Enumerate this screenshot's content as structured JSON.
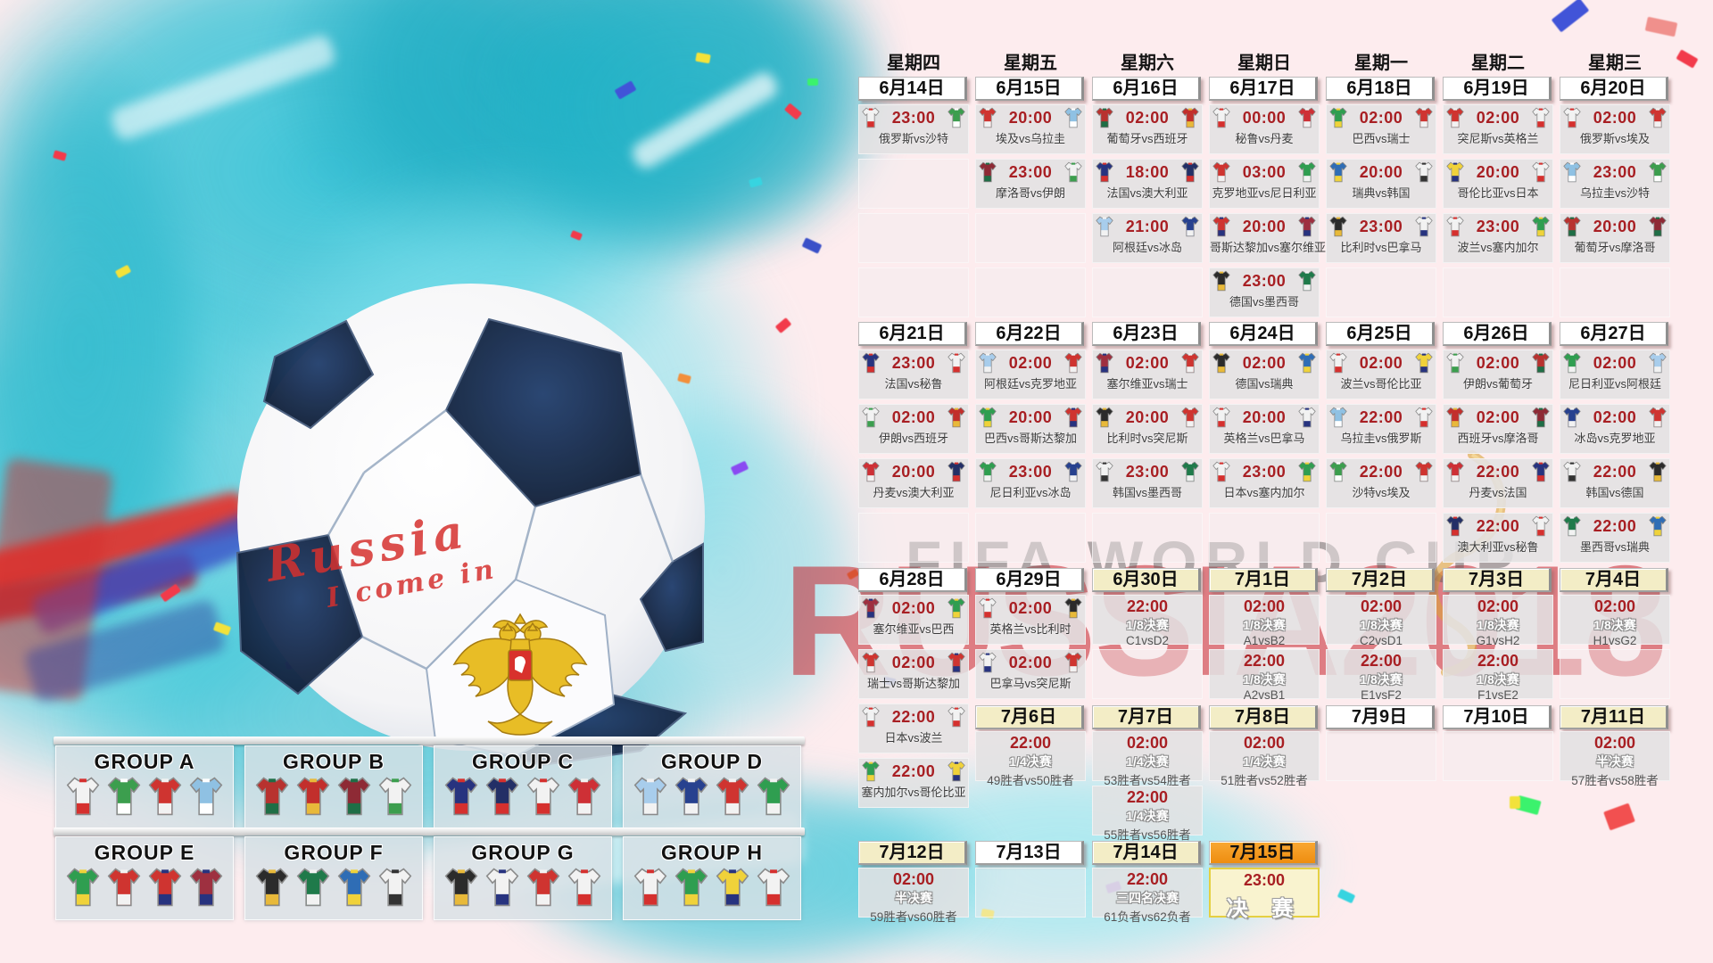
{
  "artwork": {
    "ball_text_line1": "Russia",
    "ball_text_line2": "I come in",
    "watermark_red_text": "RUSSIA2018",
    "watermark_gray_text": "FIFA WORLD CUP"
  },
  "colors": {
    "time_red": "#a81f23",
    "date_plain_bg": "#ffffff",
    "date_knockout_bg": "#f3edc6",
    "date_final_bg": "#f59a23",
    "final_cell_bg": "#f9f3cf",
    "final_cell_border": "#e5d042",
    "cell_bg": "#e3e1e2",
    "splash_cyan": "#35c3d7",
    "watermark_red": "#c4232b"
  },
  "weekdays": [
    "星期四",
    "星期五",
    "星期六",
    "星期日",
    "星期一",
    "星期二",
    "星期三"
  ],
  "teams": {
    "俄罗斯": [
      "#f2f2f2",
      "#d5302e"
    ],
    "沙特": [
      "#3c9e4e",
      "#ffffff"
    ],
    "埃及": [
      "#cf3430",
      "#f2f2f2"
    ],
    "乌拉圭": [
      "#8fc1e3",
      "#ffffff"
    ],
    "葡萄牙": [
      "#b8322f",
      "#1f6e46"
    ],
    "西班牙": [
      "#c22f2c",
      "#e8b93a"
    ],
    "摩洛哥": [
      "#8e2a35",
      "#1f6e46"
    ],
    "伊朗": [
      "#f2f2f2",
      "#3c9e4e"
    ],
    "法国": [
      "#27337f",
      "#d5302e"
    ],
    "澳大利亚": [
      "#232f66",
      "#d5302e"
    ],
    "秘鲁": [
      "#f2f2f2",
      "#d5302e"
    ],
    "丹麦": [
      "#ce3036",
      "#f2f2f2"
    ],
    "阿根廷": [
      "#a8cdec",
      "#f2f2f2"
    ],
    "冰岛": [
      "#27418f",
      "#f2f2f2"
    ],
    "克罗地亚": [
      "#cf3430",
      "#f2f2f2"
    ],
    "尼日利亚": [
      "#2f9e50",
      "#f2f2f2"
    ],
    "巴西": [
      "#2f9e50",
      "#f0d23a"
    ],
    "瑞士": [
      "#cf3430",
      "#f2f2f2"
    ],
    "哥斯达黎加": [
      "#cf3430",
      "#27337f"
    ],
    "塞尔维亚": [
      "#9e3040",
      "#27337f"
    ],
    "德国": [
      "#2b2b2b",
      "#e8b93a"
    ],
    "墨西哥": [
      "#1f7a4a",
      "#f2f2f2"
    ],
    "瑞典": [
      "#2f6db5",
      "#f0d23a"
    ],
    "韩国": [
      "#f2f2f2",
      "#333333"
    ],
    "比利时": [
      "#2b2b2b",
      "#e8b93a"
    ],
    "巴拿马": [
      "#f2f2f2",
      "#27337f"
    ],
    "突尼斯": [
      "#cf3430",
      "#f2f2f2"
    ],
    "英格兰": [
      "#f2f2f2",
      "#d5302e"
    ],
    "波兰": [
      "#f2f2f2",
      "#d5302e"
    ],
    "塞内加尔": [
      "#2f9e50",
      "#f0d23a"
    ],
    "哥伦比亚": [
      "#f0d23a",
      "#27337f"
    ],
    "日本": [
      "#f2f2f2",
      "#d5302e"
    ]
  },
  "sections": [
    {
      "dates": [
        {
          "label": "6月14日",
          "style": "plain"
        },
        {
          "label": "6月15日",
          "style": "plain"
        },
        {
          "label": "6月16日",
          "style": "plain"
        },
        {
          "label": "6月17日",
          "style": "plain"
        },
        {
          "label": "6月18日",
          "style": "plain"
        },
        {
          "label": "6月19日",
          "style": "plain"
        },
        {
          "label": "6月20日",
          "style": "plain"
        }
      ],
      "columns": [
        [
          {
            "type": "match",
            "time": "23:00",
            "home": "俄罗斯",
            "away": "沙特",
            "label": "俄罗斯vs沙特"
          },
          {
            "type": "empty"
          },
          {
            "type": "empty"
          },
          {
            "type": "empty"
          }
        ],
        [
          {
            "type": "match",
            "time": "20:00",
            "home": "埃及",
            "away": "乌拉圭",
            "label": "埃及vs乌拉圭"
          },
          {
            "type": "match",
            "time": "23:00",
            "home": "摩洛哥",
            "away": "伊朗",
            "label": "摩洛哥vs伊朗"
          },
          {
            "type": "empty"
          },
          {
            "type": "empty"
          }
        ],
        [
          {
            "type": "match",
            "time": "02:00",
            "home": "葡萄牙",
            "away": "西班牙",
            "label": "葡萄牙vs西班牙"
          },
          {
            "type": "match",
            "time": "18:00",
            "home": "法国",
            "away": "澳大利亚",
            "label": "法国vs澳大利亚"
          },
          {
            "type": "match",
            "time": "21:00",
            "home": "阿根廷",
            "away": "冰岛",
            "label": "阿根廷vs冰岛"
          },
          {
            "type": "empty"
          }
        ],
        [
          {
            "type": "match",
            "time": "00:00",
            "home": "秘鲁",
            "away": "丹麦",
            "label": "秘鲁vs丹麦"
          },
          {
            "type": "match",
            "time": "03:00",
            "home": "克罗地亚",
            "away": "尼日利亚",
            "label": "克罗地亚vs尼日利亚"
          },
          {
            "type": "match",
            "time": "20:00",
            "home": "哥斯达黎加",
            "away": "塞尔维亚",
            "label": "哥斯达黎加vs塞尔维亚"
          },
          {
            "type": "match",
            "time": "23:00",
            "home": "德国",
            "away": "墨西哥",
            "label": "德国vs墨西哥"
          }
        ],
        [
          {
            "type": "match",
            "time": "02:00",
            "home": "巴西",
            "away": "瑞士",
            "label": "巴西vs瑞士"
          },
          {
            "type": "match",
            "time": "20:00",
            "home": "瑞典",
            "away": "韩国",
            "label": "瑞典vs韩国"
          },
          {
            "type": "match",
            "time": "23:00",
            "home": "比利时",
            "away": "巴拿马",
            "label": "比利时vs巴拿马"
          },
          {
            "type": "empty"
          }
        ],
        [
          {
            "type": "match",
            "time": "02:00",
            "home": "突尼斯",
            "away": "英格兰",
            "label": "突尼斯vs英格兰"
          },
          {
            "type": "match",
            "time": "20:00",
            "home": "哥伦比亚",
            "away": "日本",
            "label": "哥伦比亚vs日本"
          },
          {
            "type": "match",
            "time": "23:00",
            "home": "波兰",
            "away": "塞内加尔",
            "label": "波兰vs塞内加尔"
          },
          {
            "type": "empty"
          }
        ],
        [
          {
            "type": "match",
            "time": "02:00",
            "home": "俄罗斯",
            "away": "埃及",
            "label": "俄罗斯vs埃及"
          },
          {
            "type": "match",
            "time": "23:00",
            "home": "乌拉圭",
            "away": "沙特",
            "label": "乌拉圭vs沙特"
          },
          {
            "type": "match",
            "time": "20:00",
            "home": "葡萄牙",
            "away": "摩洛哥",
            "label": "葡萄牙vs摩洛哥"
          },
          {
            "type": "empty"
          }
        ]
      ]
    },
    {
      "dates": [
        {
          "label": "6月21日",
          "style": "plain"
        },
        {
          "label": "6月22日",
          "style": "plain"
        },
        {
          "label": "6月23日",
          "style": "plain"
        },
        {
          "label": "6月24日",
          "style": "plain"
        },
        {
          "label": "6月25日",
          "style": "plain"
        },
        {
          "label": "6月26日",
          "style": "plain"
        },
        {
          "label": "6月27日",
          "style": "plain"
        }
      ],
      "columns": [
        [
          {
            "type": "match",
            "time": "23:00",
            "home": "法国",
            "away": "秘鲁",
            "label": "法国vs秘鲁"
          },
          {
            "type": "match",
            "time": "02:00",
            "home": "伊朗",
            "away": "西班牙",
            "label": "伊朗vs西班牙"
          },
          {
            "type": "match",
            "time": "20:00",
            "home": "丹麦",
            "away": "澳大利亚",
            "label": "丹麦vs澳大利亚"
          },
          {
            "type": "empty"
          }
        ],
        [
          {
            "type": "match",
            "time": "02:00",
            "home": "阿根廷",
            "away": "克罗地亚",
            "label": "阿根廷vs克罗地亚"
          },
          {
            "type": "match",
            "time": "20:00",
            "home": "巴西",
            "away": "哥斯达黎加",
            "label": "巴西vs哥斯达黎加"
          },
          {
            "type": "match",
            "time": "23:00",
            "home": "尼日利亚",
            "away": "冰岛",
            "label": "尼日利亚vs冰岛"
          },
          {
            "type": "empty"
          }
        ],
        [
          {
            "type": "match",
            "time": "02:00",
            "home": "塞尔维亚",
            "away": "瑞士",
            "label": "塞尔维亚vs瑞士"
          },
          {
            "type": "match",
            "time": "20:00",
            "home": "比利时",
            "away": "突尼斯",
            "label": "比利时vs突尼斯"
          },
          {
            "type": "match",
            "time": "23:00",
            "home": "韩国",
            "away": "墨西哥",
            "label": "韩国vs墨西哥"
          },
          {
            "type": "empty"
          }
        ],
        [
          {
            "type": "match",
            "time": "02:00",
            "home": "德国",
            "away": "瑞典",
            "label": "德国vs瑞典"
          },
          {
            "type": "match",
            "time": "20:00",
            "home": "英格兰",
            "away": "巴拿马",
            "label": "英格兰vs巴拿马"
          },
          {
            "type": "match",
            "time": "23:00",
            "home": "日本",
            "away": "塞内加尔",
            "label": "日本vs塞内加尔"
          },
          {
            "type": "empty"
          }
        ],
        [
          {
            "type": "match",
            "time": "02:00",
            "home": "波兰",
            "away": "哥伦比亚",
            "label": "波兰vs哥伦比亚"
          },
          {
            "type": "match",
            "time": "22:00",
            "home": "乌拉圭",
            "away": "俄罗斯",
            "label": "乌拉圭vs俄罗斯"
          },
          {
            "type": "match",
            "time": "22:00",
            "home": "沙特",
            "away": "埃及",
            "label": "沙特vs埃及"
          },
          {
            "type": "empty"
          }
        ],
        [
          {
            "type": "match",
            "time": "02:00",
            "home": "伊朗",
            "away": "葡萄牙",
            "label": "伊朗vs葡萄牙"
          },
          {
            "type": "match",
            "time": "02:00",
            "home": "西班牙",
            "away": "摩洛哥",
            "label": "西班牙vs摩洛哥"
          },
          {
            "type": "match",
            "time": "22:00",
            "home": "丹麦",
            "away": "法国",
            "label": "丹麦vs法国"
          },
          {
            "type": "match",
            "time": "22:00",
            "home": "澳大利亚",
            "away": "秘鲁",
            "label": "澳大利亚vs秘鲁"
          }
        ],
        [
          {
            "type": "match",
            "time": "02:00",
            "home": "尼日利亚",
            "away": "阿根廷",
            "label": "尼日利亚vs阿根廷"
          },
          {
            "type": "match",
            "time": "02:00",
            "home": "冰岛",
            "away": "克罗地亚",
            "label": "冰岛vs克罗地亚"
          },
          {
            "type": "match",
            "time": "22:00",
            "home": "韩国",
            "away": "德国",
            "label": "韩国vs德国"
          },
          {
            "type": "match",
            "time": "22:00",
            "home": "墨西哥",
            "away": "瑞典",
            "label": "墨西哥vs瑞典"
          }
        ]
      ]
    },
    {
      "dates": [
        {
          "label": "6月28日",
          "style": "plain"
        },
        {
          "label": "6月29日",
          "style": "plain"
        },
        {
          "label": "6月30日",
          "style": "cream"
        },
        {
          "label": "7月1日",
          "style": "cream"
        },
        {
          "label": "7月2日",
          "style": "cream"
        },
        {
          "label": "7月3日",
          "style": "cream"
        },
        {
          "label": "7月4日",
          "style": "cream"
        }
      ],
      "columns": [
        [
          {
            "type": "match",
            "time": "02:00",
            "home": "塞尔维亚",
            "away": "巴西",
            "label": "塞尔维亚vs巴西"
          },
          {
            "type": "match",
            "time": "02:00",
            "home": "瑞士",
            "away": "哥斯达黎加",
            "label": "瑞士vs哥斯达黎加"
          },
          {
            "type": "match",
            "time": "22:00",
            "home": "日本",
            "away": "波兰",
            "label": "日本vs波兰"
          },
          {
            "type": "match",
            "time": "22:00",
            "home": "塞内加尔",
            "away": "哥伦比亚",
            "label": "塞内加尔vs哥伦比亚"
          }
        ],
        [
          {
            "type": "match",
            "time": "02:00",
            "home": "英格兰",
            "away": "比利时",
            "label": "英格兰vs比利时"
          },
          {
            "type": "match",
            "time": "02:00",
            "home": "巴拿马",
            "away": "突尼斯",
            "label": "巴拿马vs突尼斯"
          }
        ],
        [
          {
            "type": "ko",
            "time": "22:00",
            "round": "1/8决赛",
            "pairing": "C1vsD2"
          },
          {
            "type": "empty"
          }
        ],
        [
          {
            "type": "ko",
            "time": "02:00",
            "round": "1/8决赛",
            "pairing": "A1vsB2"
          },
          {
            "type": "ko",
            "time": "22:00",
            "round": "1/8决赛",
            "pairing": "A2vsB1"
          }
        ],
        [
          {
            "type": "ko",
            "time": "02:00",
            "round": "1/8决赛",
            "pairing": "C2vsD1"
          },
          {
            "type": "ko",
            "time": "22:00",
            "round": "1/8决赛",
            "pairing": "E1vsF2"
          }
        ],
        [
          {
            "type": "ko",
            "time": "02:00",
            "round": "1/8决赛",
            "pairing": "G1vsH2"
          },
          {
            "type": "ko",
            "time": "22:00",
            "round": "1/8决赛",
            "pairing": "F1vsE2"
          }
        ],
        [
          {
            "type": "ko",
            "time": "02:00",
            "round": "1/8决赛",
            "pairing": "H1vsG2"
          },
          {
            "type": "empty"
          }
        ]
      ],
      "july_dates": [
        null,
        {
          "label": "7月6日",
          "style": "cream",
          "cells": [
            {
              "type": "ko",
              "time": "22:00",
              "round": "1/4决赛",
              "pairing": "49胜者vs50胜者"
            }
          ]
        },
        {
          "label": "7月7日",
          "style": "cream",
          "cells": [
            {
              "type": "ko",
              "time": "02:00",
              "round": "1/4决赛",
              "pairing": "53胜者vs54胜者"
            },
            {
              "type": "ko",
              "time": "22:00",
              "round": "1/4决赛",
              "pairing": "55胜者vs56胜者"
            }
          ]
        },
        {
          "label": "7月8日",
          "style": "cream",
          "cells": [
            {
              "type": "ko",
              "time": "02:00",
              "round": "1/4决赛",
              "pairing": "51胜者vs52胜者"
            }
          ]
        },
        {
          "label": "7月9日",
          "style": "plain",
          "cells": [
            {
              "type": "empty"
            }
          ]
        },
        {
          "label": "7月10日",
          "style": "plain",
          "cells": [
            {
              "type": "empty"
            }
          ]
        },
        {
          "label": "7月11日",
          "style": "cream",
          "cells": [
            {
              "type": "ko",
              "time": "02:00",
              "round": "半决赛",
              "pairing": "57胜者vs58胜者"
            }
          ]
        }
      ]
    },
    {
      "dates": [
        {
          "label": "7月12日",
          "style": "cream"
        },
        {
          "label": "7月13日",
          "style": "plain"
        },
        {
          "label": "7月14日",
          "style": "cream"
        },
        {
          "label": "7月15日",
          "style": "orange"
        }
      ],
      "columns": [
        [
          {
            "type": "ko",
            "time": "02:00",
            "round": "半决赛",
            "pairing": "59胜者vs60胜者"
          }
        ],
        [
          {
            "type": "empty"
          }
        ],
        [
          {
            "type": "ko",
            "time": "22:00",
            "round": "三四名决赛",
            "pairing": "61负者vs62负者"
          }
        ],
        [
          {
            "type": "final",
            "time": "23:00",
            "round": "决 赛"
          }
        ]
      ]
    }
  ],
  "groups": [
    {
      "label": "GROUP A",
      "teams": [
        "俄罗斯",
        "沙特",
        "埃及",
        "乌拉圭"
      ]
    },
    {
      "label": "GROUP B",
      "teams": [
        "葡萄牙",
        "西班牙",
        "摩洛哥",
        "伊朗"
      ]
    },
    {
      "label": "GROUP C",
      "teams": [
        "法国",
        "澳大利亚",
        "秘鲁",
        "丹麦"
      ]
    },
    {
      "label": "GROUP D",
      "teams": [
        "阿根廷",
        "冰岛",
        "克罗地亚",
        "尼日利亚"
      ]
    },
    {
      "label": "GROUP E",
      "teams": [
        "巴西",
        "瑞士",
        "哥斯达黎加",
        "塞尔维亚"
      ]
    },
    {
      "label": "GROUP F",
      "teams": [
        "德国",
        "墨西哥",
        "瑞典",
        "韩国"
      ]
    },
    {
      "label": "GROUP G",
      "teams": [
        "比利时",
        "巴拿马",
        "突尼斯",
        "英格兰"
      ]
    },
    {
      "label": "GROUP H",
      "teams": [
        "波兰",
        "塞内加尔",
        "哥伦比亚",
        "日本"
      ]
    }
  ]
}
